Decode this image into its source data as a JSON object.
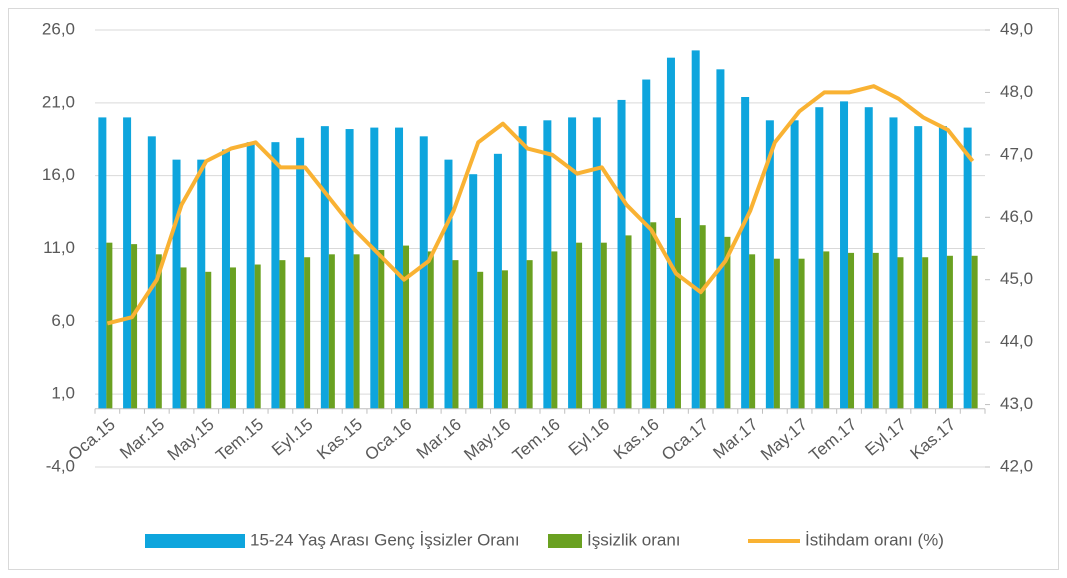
{
  "chart_data": {
    "type": "bar",
    "categories": [
      "Oca.15",
      null,
      "Mar.15",
      null,
      "May.15",
      null,
      "Tem.15",
      null,
      "Eyl.15",
      null,
      "Kas.15",
      null,
      "Oca.16",
      null,
      "Mar.16",
      null,
      "May.16",
      null,
      "Tem.16",
      null,
      "Eyl.16",
      null,
      "Kas.16",
      null,
      "Oca.17",
      null,
      "Mar.17",
      null,
      "May.17",
      null,
      "Tem.17",
      null,
      "Eyl.17",
      null,
      "Kas.17",
      null
    ],
    "series": [
      {
        "name": "15-24 Yaş Arası Genç İşsizler Oranı",
        "type": "bar",
        "color": "#0ea5dd",
        "values": [
          20.0,
          20.0,
          18.7,
          17.1,
          17.1,
          17.8,
          18.3,
          18.3,
          18.6,
          19.4,
          19.2,
          19.3,
          19.3,
          18.7,
          17.1,
          16.1,
          17.5,
          19.4,
          19.8,
          20.0,
          20.0,
          21.2,
          22.6,
          24.1,
          24.6,
          23.3,
          21.4,
          19.8,
          19.8,
          20.7,
          21.1,
          20.7,
          20.0,
          19.4,
          19.4,
          19.3
        ]
      },
      {
        "name": "İşsizlik oranı",
        "type": "bar",
        "color": "#6aa121",
        "values": [
          11.4,
          11.3,
          10.6,
          9.7,
          9.4,
          9.7,
          9.9,
          10.2,
          10.4,
          10.6,
          10.6,
          10.9,
          11.2,
          10.8,
          10.2,
          9.4,
          9.5,
          10.2,
          10.8,
          11.4,
          11.4,
          11.9,
          12.8,
          13.1,
          12.6,
          11.8,
          10.6,
          10.3,
          10.3,
          10.8,
          10.7,
          10.7,
          10.4,
          10.4,
          10.5,
          10.5
        ]
      },
      {
        "name": "İstihdam oranı (%)",
        "type": "line",
        "axis": "y2",
        "color": "#f9b233",
        "values": [
          44.3,
          44.4,
          45.0,
          46.2,
          46.9,
          47.1,
          47.2,
          46.8,
          46.8,
          46.3,
          45.8,
          45.4,
          45.0,
          45.3,
          46.1,
          47.2,
          47.5,
          47.1,
          47.0,
          46.7,
          46.8,
          46.2,
          45.8,
          45.1,
          44.8,
          45.3,
          46.1,
          47.2,
          47.7,
          48.0,
          48.0,
          48.1,
          47.9,
          47.6,
          47.4,
          46.9
        ]
      }
    ],
    "ylim": [
      -4.0,
      26.0
    ],
    "yticks": [
      {
        "value": -4.0,
        "label": "-4,0"
      },
      {
        "value": 1.0,
        "label": "1,0"
      },
      {
        "value": 6.0,
        "label": "6,0"
      },
      {
        "value": 11.0,
        "label": "11,0"
      },
      {
        "value": 16.0,
        "label": "16,0"
      },
      {
        "value": 21.0,
        "label": "21,0"
      },
      {
        "value": 26.0,
        "label": "26,0"
      }
    ],
    "y2lim": [
      42.0,
      49.0
    ],
    "y2ticks": [
      {
        "value": 42.0,
        "label": "42,0"
      },
      {
        "value": 43.0,
        "label": "43,0"
      },
      {
        "value": 44.0,
        "label": "44,0"
      },
      {
        "value": 45.0,
        "label": "45,0"
      },
      {
        "value": 46.0,
        "label": "46,0"
      },
      {
        "value": 47.0,
        "label": "47,0"
      },
      {
        "value": 48.0,
        "label": "48,0"
      },
      {
        "value": 49.0,
        "label": "49,0"
      }
    ],
    "grid": true,
    "legend": "bottom"
  }
}
